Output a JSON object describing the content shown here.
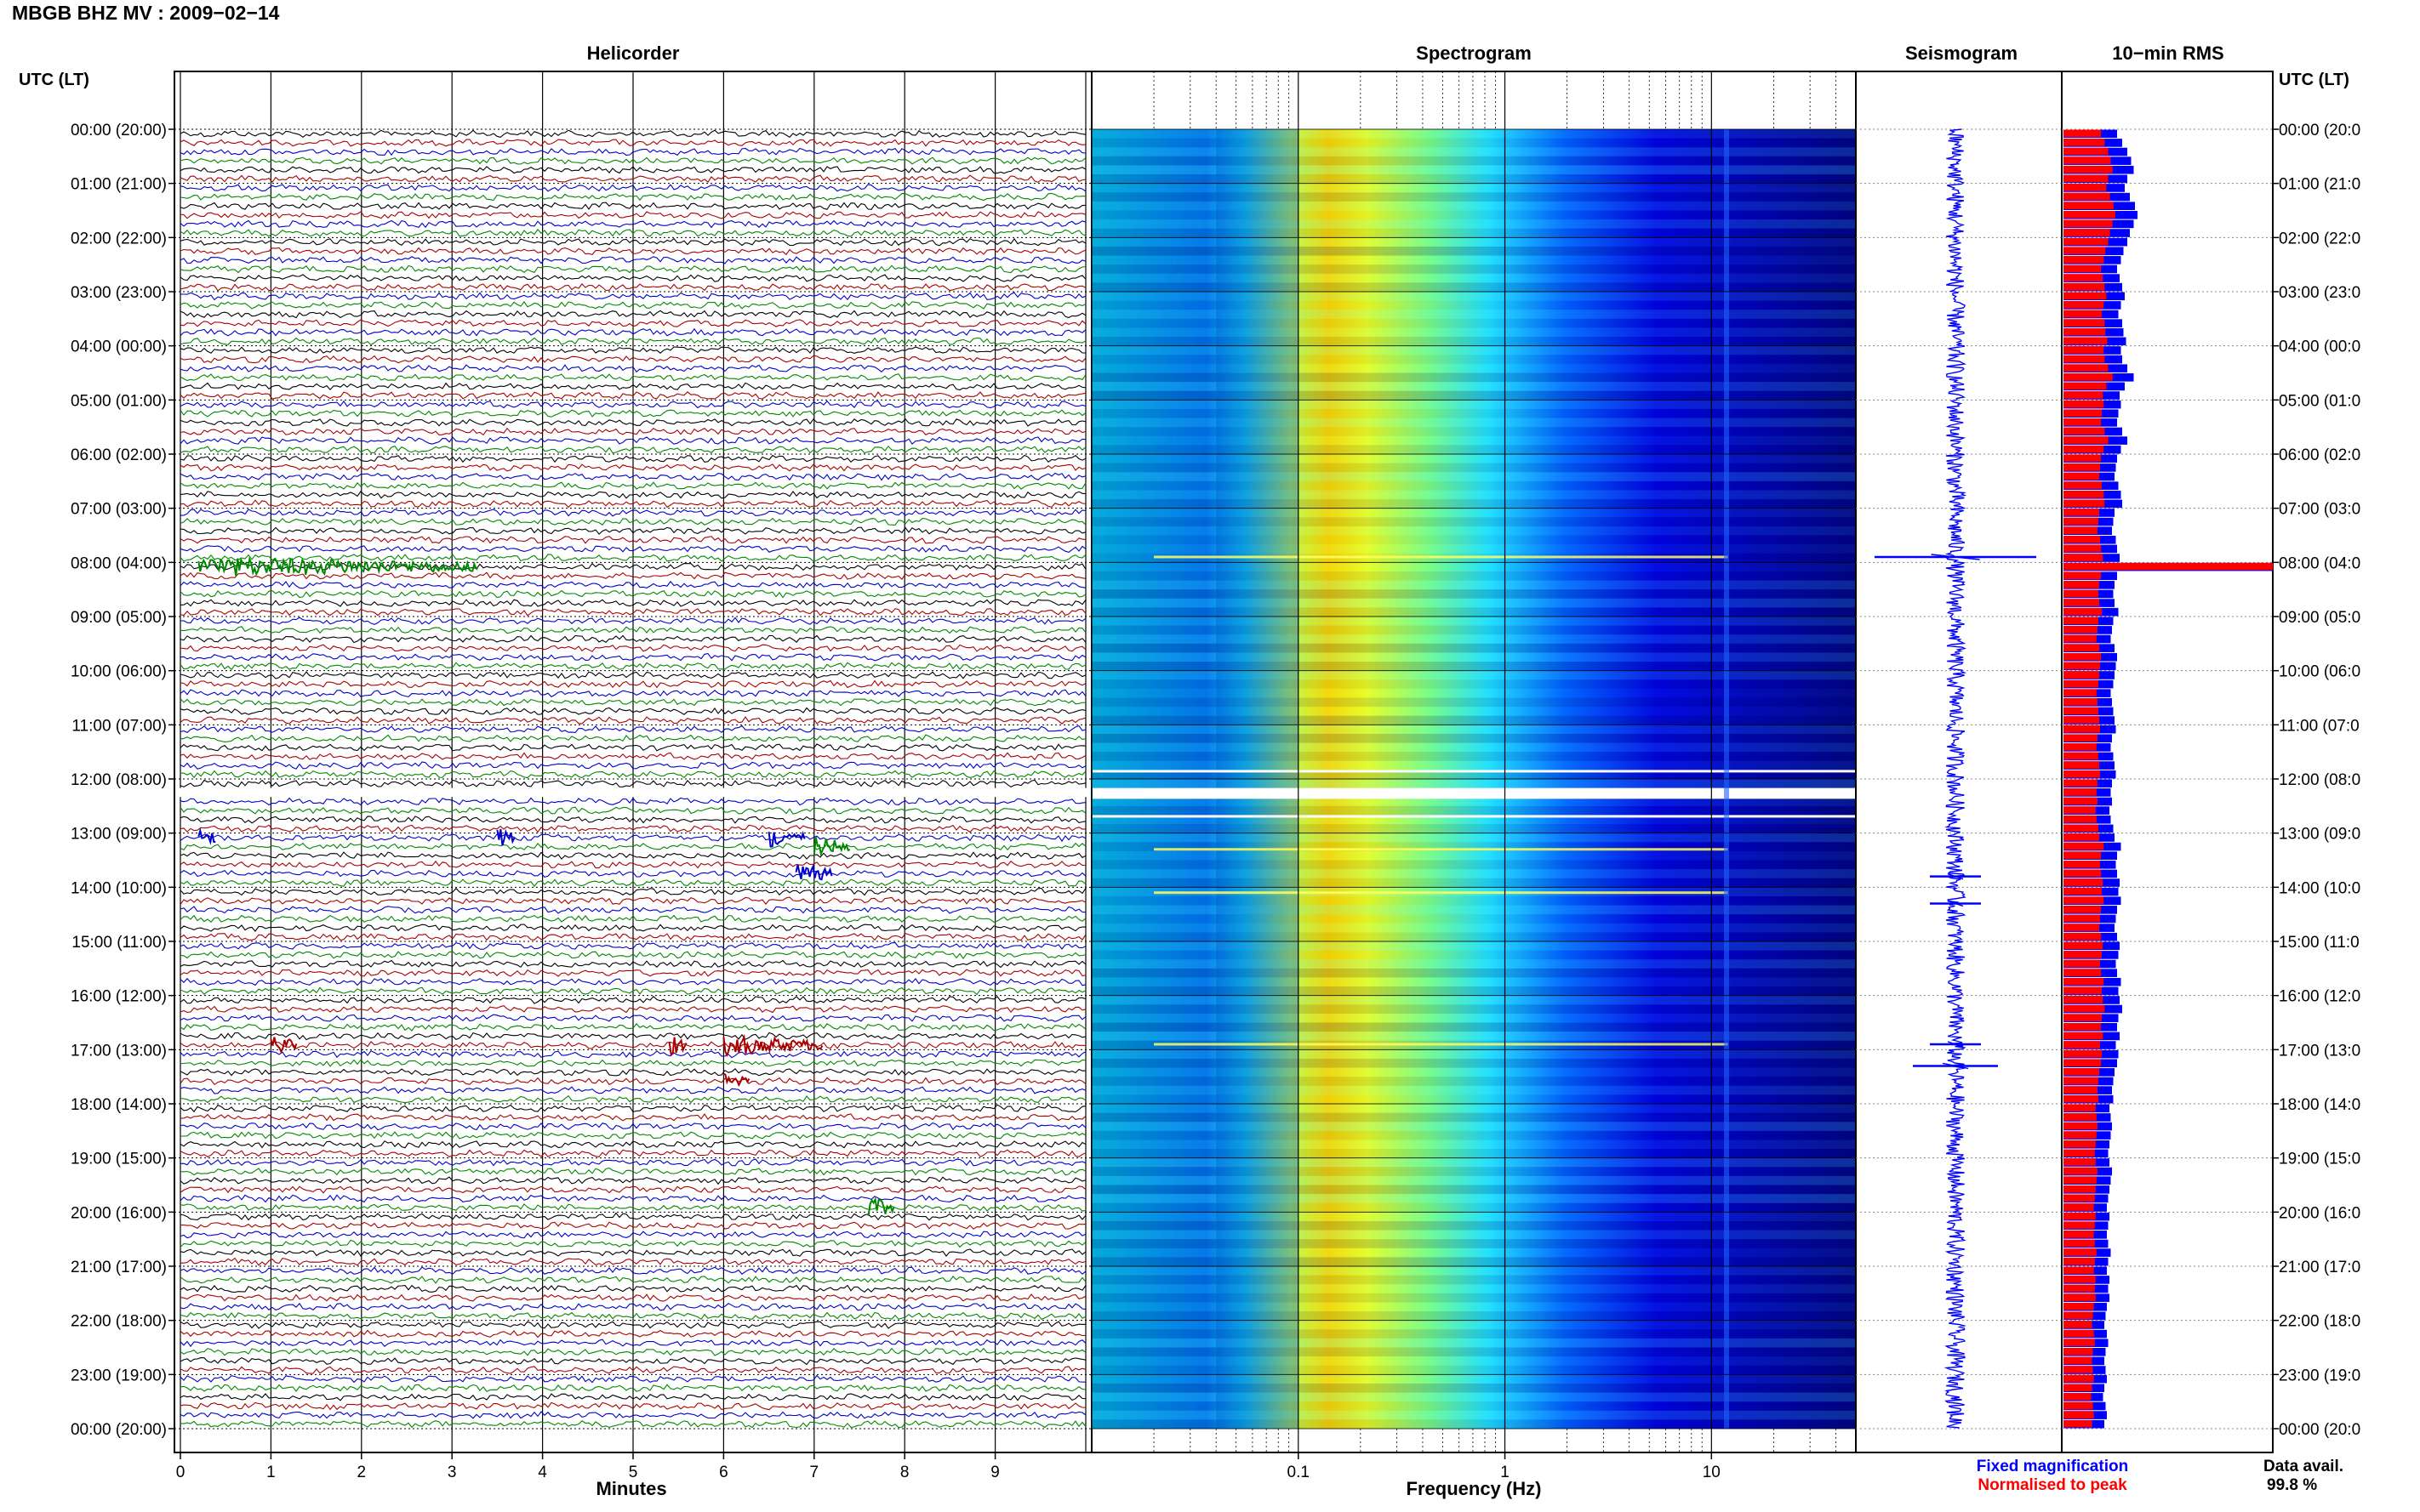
{
  "header": {
    "title": "MBGB BHZ MV : 2009−02−14",
    "utc_label_left": "UTC (LT)",
    "utc_label_right": "UTC (LT)"
  },
  "panels": {
    "helicorder": "Helicorder",
    "spectrogram": "Spectrogram",
    "seismogram": "Seismogram",
    "rms": "10−min RMS"
  },
  "time_labels_left": [
    "00:00 (20:00)",
    "01:00 (21:00)",
    "02:00 (22:00)",
    "03:00 (23:00)",
    "04:00 (00:00)",
    "05:00 (01:00)",
    "06:00 (02:00)",
    "07:00 (03:00)",
    "08:00 (04:00)",
    "09:00 (05:00)",
    "10:00 (06:00)",
    "11:00 (07:00)",
    "12:00 (08:00)",
    "13:00 (09:00)",
    "14:00 (10:00)",
    "15:00 (11:00)",
    "16:00 (12:00)",
    "17:00 (13:00)",
    "18:00 (14:00)",
    "19:00 (15:00)",
    "20:00 (16:00)",
    "21:00 (17:00)",
    "22:00 (18:00)",
    "23:00 (19:00)",
    "00:00 (20:00)"
  ],
  "time_labels_right": [
    "00:00 (20:0",
    "01:00 (21:0",
    "02:00 (22:0",
    "03:00 (23:0",
    "04:00 (00:0",
    "05:00 (01:0",
    "06:00 (02:0",
    "07:00 (03:0",
    "08:00 (04:0",
    "09:00 (05:0",
    "10:00 (06:0",
    "11:00 (07:0",
    "12:00 (08:0",
    "13:00 (09:0",
    "14:00 (10:0",
    "15:00 (11:0",
    "16:00 (12:0",
    "17:00 (13:0",
    "18:00 (14:0",
    "19:00 (15:0",
    "20:00 (16:0",
    "21:00 (17:0",
    "22:00 (18:0",
    "23:00 (19:0",
    "00:00 (20:0"
  ],
  "legend": {
    "fixed": "Fixed magnification",
    "normalised": "Normalised to peak",
    "fixed_color": "#0000ff",
    "normalised_color": "#ff0000"
  },
  "footer": {
    "data_avail_label": "Data avail.",
    "data_avail_value": "99.8 %"
  },
  "chart_data": [
    {
      "type": "line",
      "title": "Helicorder",
      "xlabel": "Minutes",
      "x_ticks": [
        "0",
        "1",
        "2",
        "3",
        "4",
        "5",
        "6",
        "7",
        "8",
        "9"
      ],
      "xlim": [
        0,
        10
      ],
      "row_minutes": 10,
      "rows": 144,
      "trace_colors": [
        "#000000",
        "#aa0000",
        "#0000cc",
        "#008800"
      ],
      "gap_rows": [
        72,
        73,
        74
      ],
      "events": [
        {
          "row": 48,
          "start_min": 0.2,
          "end_min": 3.3,
          "color": "#008800"
        },
        {
          "row": 78,
          "start_min": 0.2,
          "end_min": 0.4,
          "color": "#0000cc"
        },
        {
          "row": 78,
          "start_min": 3.5,
          "end_min": 3.7,
          "color": "#0000cc"
        },
        {
          "row": 78,
          "start_min": 6.5,
          "end_min": 6.9,
          "color": "#0000cc"
        },
        {
          "row": 82,
          "start_min": 6.8,
          "end_min": 7.2,
          "color": "#0000cc"
        },
        {
          "row": 79,
          "start_min": 7.0,
          "end_min": 7.4,
          "color": "#008800"
        },
        {
          "row": 101,
          "start_min": 1.0,
          "end_min": 1.3,
          "color": "#aa0000"
        },
        {
          "row": 101,
          "start_min": 5.4,
          "end_min": 5.6,
          "color": "#aa0000"
        },
        {
          "row": 101,
          "start_min": 6.0,
          "end_min": 7.1,
          "color": "#aa0000"
        },
        {
          "row": 105,
          "start_min": 6.0,
          "end_min": 6.3,
          "color": "#aa0000"
        },
        {
          "row": 119,
          "start_min": 7.6,
          "end_min": 7.9,
          "color": "#008800"
        }
      ]
    },
    {
      "type": "heatmap",
      "title": "Spectrogram",
      "xlabel": "Frequency (Hz)",
      "x_scale": "log",
      "xlim": [
        0.01,
        50
      ],
      "x_ticks": [
        0.1,
        1,
        10
      ],
      "x_tick_labels": [
        "0.1",
        "1",
        "10"
      ],
      "hours": 24,
      "peak_frequency_hz": 0.25,
      "strong_line_hours": [
        7.9,
        13.3,
        14.1,
        16.9
      ],
      "colormap": [
        "#00007f",
        "#0000ff",
        "#00ffff",
        "#ffff00",
        "#ff7f00"
      ]
    },
    {
      "type": "line",
      "title": "Seismogram",
      "hours": 24,
      "spike_hours": [
        7.9,
        13.8,
        14.3,
        16.9,
        17.3
      ]
    },
    {
      "type": "bar",
      "title": "10−min RMS",
      "orientation": "horizontal",
      "series": [
        {
          "name": "Fixed magnification",
          "color": "#0000ff"
        },
        {
          "name": "Normalised to peak",
          "color": "#ff0000"
        }
      ],
      "blue_values": [
        0.42,
        0.46,
        0.5,
        0.53,
        0.55,
        0.5,
        0.48,
        0.52,
        0.56,
        0.58,
        0.55,
        0.52,
        0.5,
        0.47,
        0.45,
        0.42,
        0.44,
        0.46,
        0.48,
        0.45,
        0.43,
        0.46,
        0.47,
        0.49,
        0.45,
        0.46,
        0.5,
        0.55,
        0.48,
        0.44,
        0.45,
        0.43,
        0.42,
        0.46,
        0.5,
        0.45,
        0.42,
        0.41,
        0.4,
        0.43,
        0.45,
        0.46,
        0.4,
        0.39,
        0.38,
        0.41,
        0.42,
        0.44,
        1.0,
        0.42,
        0.4,
        0.39,
        0.4,
        0.43,
        0.39,
        0.38,
        0.37,
        0.4,
        0.42,
        0.41,
        0.4,
        0.39,
        0.37,
        0.38,
        0.39,
        0.4,
        0.41,
        0.38,
        0.37,
        0.39,
        0.4,
        0.41,
        0.38,
        0.37,
        0.38,
        0.36,
        0.37,
        0.39,
        0.4,
        0.45,
        0.42,
        0.41,
        0.42,
        0.44,
        0.43,
        0.45,
        0.42,
        0.41,
        0.4,
        0.42,
        0.44,
        0.43,
        0.41,
        0.42,
        0.45,
        0.43,
        0.44,
        0.46,
        0.43,
        0.42,
        0.44,
        0.41,
        0.43,
        0.42,
        0.4,
        0.39,
        0.38,
        0.39,
        0.36,
        0.37,
        0.38,
        0.37,
        0.36,
        0.35,
        0.36,
        0.38,
        0.37,
        0.36,
        0.35,
        0.34,
        0.36,
        0.35,
        0.34,
        0.35,
        0.37,
        0.35,
        0.34,
        0.36,
        0.35,
        0.36,
        0.34,
        0.33,
        0.32,
        0.34,
        0.35,
        0.33,
        0.32,
        0.33,
        0.34,
        0.32,
        0.31,
        0.33,
        0.34,
        0.32
      ],
      "red_ratio": 0.7
    }
  ]
}
